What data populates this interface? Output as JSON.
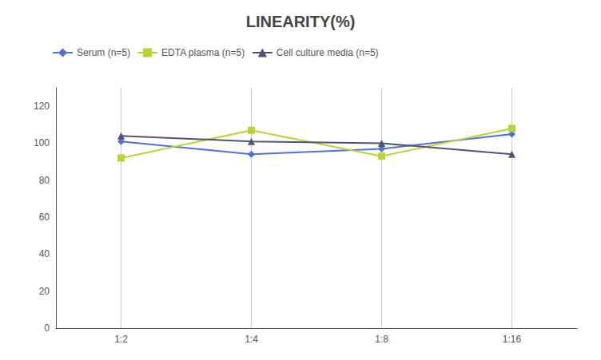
{
  "chart_data": {
    "type": "line",
    "title": "LINEARITY(%)",
    "categories": [
      "1:2",
      "1:4",
      "1:8",
      "1:16"
    ],
    "series": [
      {
        "name": "Serum (n=5)",
        "values": [
          101,
          94,
          97,
          105
        ],
        "marker": "diamond"
      },
      {
        "name": "EDTA plasma (n=5)",
        "values": [
          92,
          107,
          93,
          108
        ],
        "marker": "square"
      },
      {
        "name": "Cell culture media (n=5)",
        "values": [
          104,
          101,
          100,
          94
        ],
        "marker": "triangle"
      }
    ],
    "ylim": [
      0,
      130
    ],
    "yticks": [
      0,
      20,
      40,
      60,
      80,
      100,
      120
    ],
    "grid": "x",
    "legend": "top-left"
  }
}
